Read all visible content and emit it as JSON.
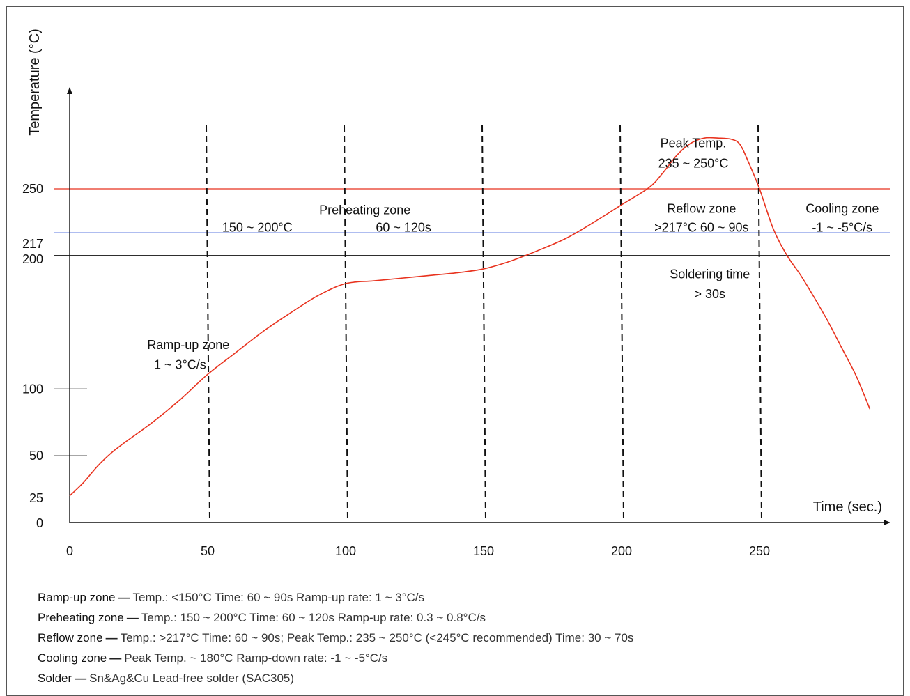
{
  "chart_data": {
    "type": "line",
    "title": "",
    "xlabel": "Time (sec.)",
    "ylabel": "Temperature (°C)",
    "xlim": [
      0,
      290
    ],
    "ylim": [
      0,
      310
    ],
    "x_ticks": [
      {
        "value": 0,
        "label": "0"
      },
      {
        "value": 50,
        "label": "50"
      },
      {
        "value": 100,
        "label": "100"
      },
      {
        "value": 150,
        "label": "150"
      },
      {
        "value": 200,
        "label": "200"
      },
      {
        "value": 250,
        "label": "250"
      }
    ],
    "y_ticks": [
      {
        "value": 0,
        "label": "0"
      },
      {
        "value": 25,
        "label": "25"
      },
      {
        "value": 50,
        "label": "50"
      },
      {
        "value": 100,
        "label": "100"
      },
      {
        "value": 200,
        "label": "200"
      },
      {
        "value": 217,
        "label": "217"
      },
      {
        "value": 250,
        "label": "250"
      }
    ],
    "reference_lines": [
      {
        "value": 250,
        "color": "#e8321e"
      },
      {
        "value": 217,
        "color": "#2a4fd6"
      },
      {
        "value": 200,
        "color": "#111111"
      }
    ],
    "zone_boundaries": [
      50,
      100,
      150,
      200,
      250
    ],
    "series": [
      {
        "color": "#e8321e",
        "x": [
          0,
          5,
          10,
          15,
          20,
          30,
          40,
          50,
          60,
          70,
          80,
          90,
          100,
          110,
          120,
          130,
          140,
          150,
          160,
          170,
          180,
          190,
          200,
          210,
          215,
          220,
          225,
          230,
          235,
          240,
          243,
          246,
          250,
          255,
          260,
          265,
          270,
          275,
          280,
          285,
          290
        ],
        "y": [
          20,
          30,
          42,
          52,
          60,
          75,
          92,
          111,
          127,
          143,
          157,
          170,
          179,
          181,
          183,
          185,
          187,
          190,
          196,
          204,
          213,
          225,
          238,
          251,
          262,
          275,
          284,
          288,
          288,
          287,
          283,
          270,
          250,
          220,
          200,
          185,
          168,
          150,
          130,
          110,
          85
        ]
      }
    ],
    "annotations": [
      {
        "id": "preheat-title",
        "text": "Preheating zone",
        "x": 107,
        "y": 231
      },
      {
        "id": "preheat-temp",
        "text": "150 ~ 200°C",
        "x": 68,
        "y": 218
      },
      {
        "id": "preheat-time",
        "text": "60 ~ 120s",
        "x": 121,
        "y": 218
      },
      {
        "id": "rampup-title",
        "text": "Ramp-up zone",
        "x": 43,
        "y": 130
      },
      {
        "id": "rampup-rate",
        "text": "1 ~ 3°C/s",
        "x": 40,
        "y": 115
      },
      {
        "id": "peak-title",
        "text": "Peak Temp.",
        "x": 226,
        "y": 281
      },
      {
        "id": "peak-range",
        "text": "235 ~ 250°C",
        "x": 226,
        "y": 266
      },
      {
        "id": "reflow-title",
        "text": "Reflow zone",
        "x": 229,
        "y": 232
      },
      {
        "id": "reflow-detail",
        "text": ">217°C  60 ~ 90s",
        "x": 229,
        "y": 218
      },
      {
        "id": "cooling-title",
        "text": "Cooling zone",
        "x": 280,
        "y": 232
      },
      {
        "id": "cooling-rate",
        "text": "-1 ~ -5°C/s",
        "x": 280,
        "y": 218
      },
      {
        "id": "solder-title",
        "text": "Soldering time",
        "x": 232,
        "y": 183
      },
      {
        "id": "solder-time",
        "text": "> 30s",
        "x": 232,
        "y": 168
      }
    ]
  },
  "notes": [
    {
      "title": "Ramp-up zone",
      "text": "Temp.: <150°C  Time: 60 ~ 90s  Ramp-up rate: 1 ~ 3°C/s"
    },
    {
      "title": "Preheating zone",
      "text": "Temp.: 150 ~ 200°C  Time: 60 ~ 120s  Ramp-up rate: 0.3 ~ 0.8°C/s"
    },
    {
      "title": "Reflow zone",
      "text": "Temp.: >217°C  Time: 60 ~ 90s; Peak Temp.: 235 ~ 250°C (<245°C recommended)  Time: 30 ~ 70s"
    },
    {
      "title": "Cooling zone",
      "text": "Peak Temp. ~ 180°C  Ramp-down rate: -1 ~ -5°C/s"
    },
    {
      "title": "Solder",
      "text": "Sn&Ag&Cu Lead-free solder (SAC305)"
    }
  ],
  "note_separator": "—"
}
